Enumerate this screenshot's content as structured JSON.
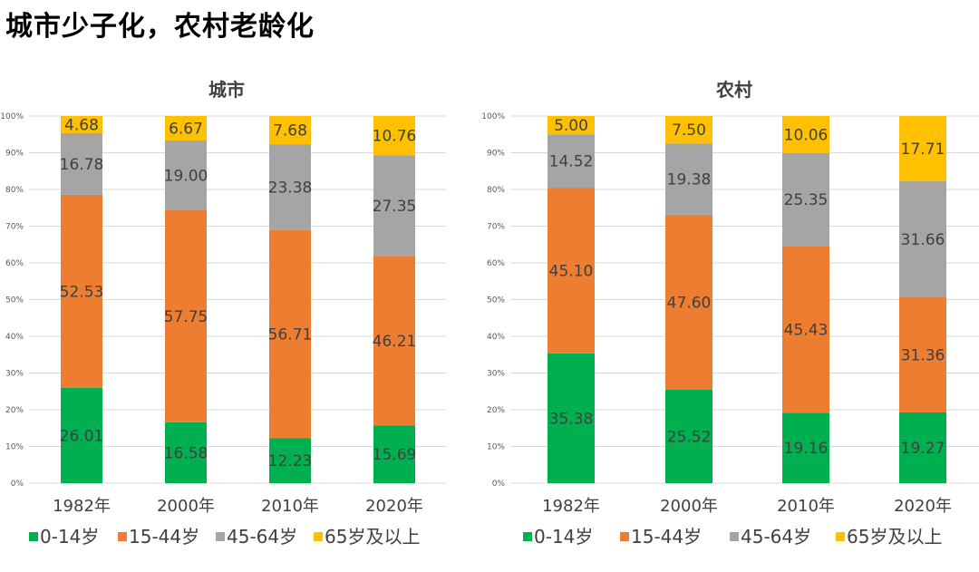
{
  "page_title": "城市少子化，农村老龄化",
  "chart_data": [
    {
      "type": "bar",
      "stacked": true,
      "title": "城市",
      "categories": [
        "1982年",
        "2000年",
        "2010年",
        "2020年"
      ],
      "y_ticks": [
        "0%",
        "10%",
        "20%",
        "30%",
        "40%",
        "50%",
        "60%",
        "70%",
        "80%",
        "90%",
        "100%"
      ],
      "ylim": [
        0,
        100
      ],
      "grid": true,
      "legend_position": "bottom",
      "series": [
        {
          "name": "0-14岁",
          "color": "#00b050",
          "values": [
            26.01,
            16.58,
            12.23,
            15.69
          ]
        },
        {
          "name": "15-44岁",
          "color": "#ed7d31",
          "values": [
            52.53,
            57.75,
            56.71,
            46.21
          ]
        },
        {
          "name": "45-64岁",
          "color": "#a5a5a5",
          "values": [
            16.78,
            19.0,
            23.38,
            27.35
          ]
        },
        {
          "name": "65岁及以上",
          "color": "#ffc000",
          "values": [
            4.68,
            6.67,
            7.68,
            10.76
          ]
        }
      ],
      "data_labels": [
        [
          "26.01",
          "16.58",
          "12.23",
          "15.69"
        ],
        [
          "52.53",
          "57.75",
          "56.71",
          "46.21"
        ],
        [
          "16.78",
          "19.00",
          "23.38",
          "27.35"
        ],
        [
          "4.68",
          "6.67",
          "7.68",
          "10.76"
        ]
      ]
    },
    {
      "type": "bar",
      "stacked": true,
      "title": "农村",
      "categories": [
        "1982年",
        "2000年",
        "2010年",
        "2020年"
      ],
      "y_ticks": [
        "0%",
        "10%",
        "20%",
        "30%",
        "40%",
        "50%",
        "60%",
        "70%",
        "80%",
        "90%",
        "100%"
      ],
      "ylim": [
        0,
        100
      ],
      "grid": true,
      "legend_position": "bottom",
      "series": [
        {
          "name": "0-14岁",
          "color": "#00b050",
          "values": [
            35.38,
            25.52,
            19.16,
            19.27
          ]
        },
        {
          "name": "15-44岁",
          "color": "#ed7d31",
          "values": [
            45.1,
            47.6,
            45.43,
            31.36
          ]
        },
        {
          "name": "45-64岁",
          "color": "#a5a5a5",
          "values": [
            14.52,
            19.38,
            25.35,
            31.66
          ]
        },
        {
          "name": "65岁及以上",
          "color": "#ffc000",
          "values": [
            5.0,
            7.5,
            10.06,
            17.71
          ]
        }
      ],
      "data_labels": [
        [
          "35.38",
          "25.52",
          "19.16",
          "19.27"
        ],
        [
          "45.10",
          "47.60",
          "45.43",
          "31.36"
        ],
        [
          "14.52",
          "19.38",
          "25.35",
          "31.66"
        ],
        [
          "5.00",
          "7.50",
          "10.06",
          "17.71"
        ]
      ]
    }
  ]
}
